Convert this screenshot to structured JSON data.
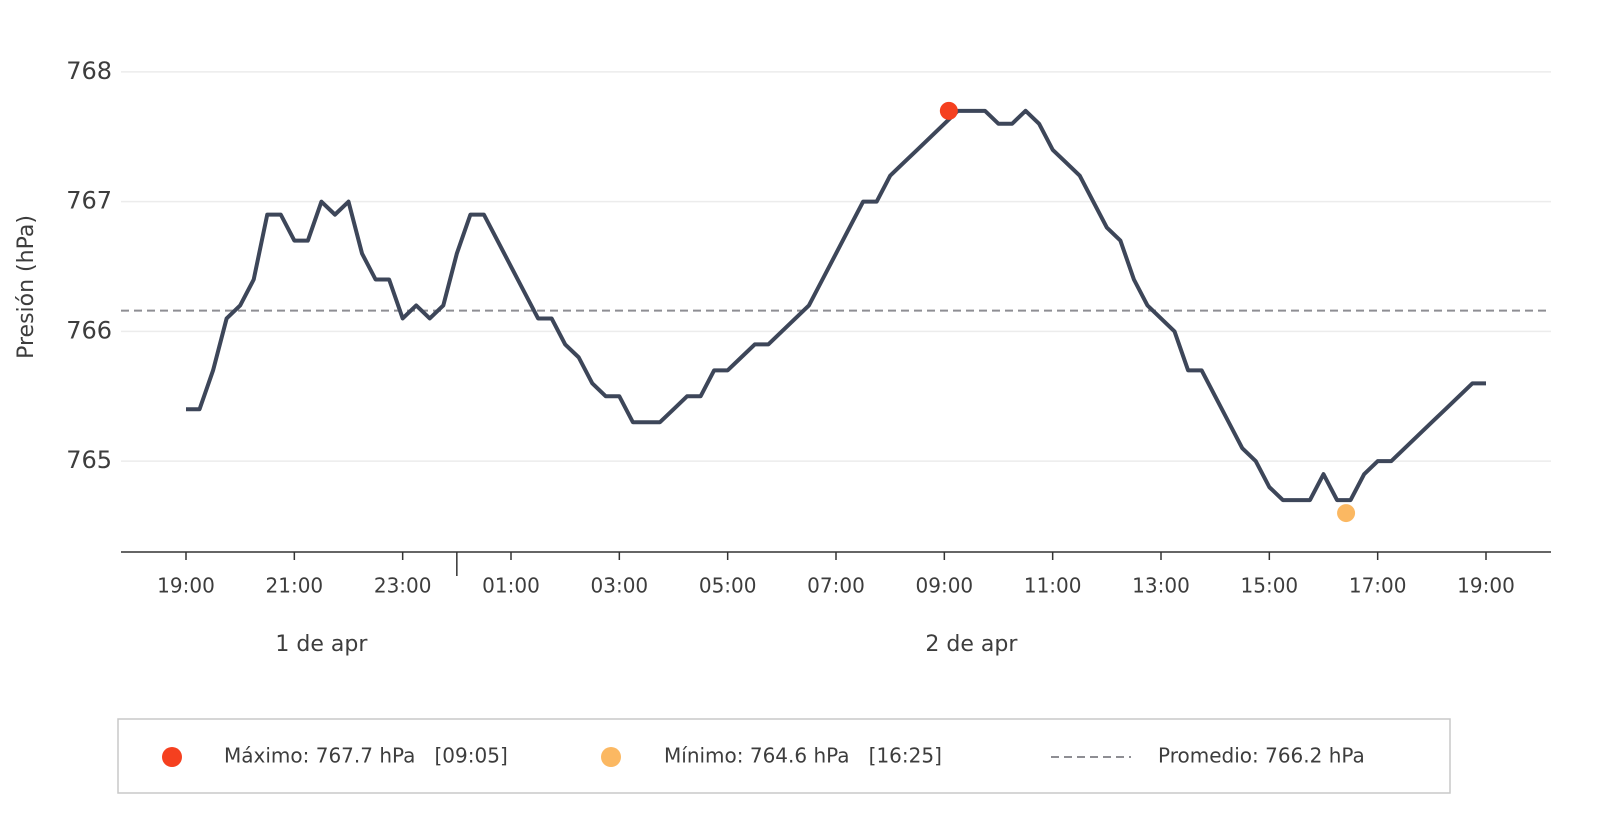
{
  "chart_data": {
    "type": "line",
    "y_label": "Presión (hPa)",
    "ylim": [
      764.3,
      768.4
    ],
    "yticks": [
      765,
      766,
      767,
      768
    ],
    "xlim": [
      "04-01T17:48",
      "04-02T20:12"
    ],
    "xticks": [
      {
        "value": "04-01T19:00",
        "label": "19:00"
      },
      {
        "value": "04-01T21:00",
        "label": "21:00"
      },
      {
        "value": "04-01T23:00",
        "label": "23:00"
      },
      {
        "value": "04-02T01:00",
        "label": "01:00"
      },
      {
        "value": "04-02T03:00",
        "label": "03:00"
      },
      {
        "value": "04-02T05:00",
        "label": "05:00"
      },
      {
        "value": "04-02T07:00",
        "label": "07:00"
      },
      {
        "value": "04-02T09:00",
        "label": "09:00"
      },
      {
        "value": "04-02T11:00",
        "label": "11:00"
      },
      {
        "value": "04-02T13:00",
        "label": "13:00"
      },
      {
        "value": "04-02T15:00",
        "label": "15:00"
      },
      {
        "value": "04-02T17:00",
        "label": "17:00"
      },
      {
        "value": "04-02T19:00",
        "label": "19:00"
      }
    ],
    "day_labels": [
      {
        "value": "04-01",
        "label": "1 de apr"
      },
      {
        "value": "04-02",
        "label": "2 de apr"
      }
    ],
    "grid": true,
    "x": [
      "04-01T19:00",
      "04-01T19:15",
      "04-01T19:30",
      "04-01T19:45",
      "04-01T20:00",
      "04-01T20:15",
      "04-01T20:30",
      "04-01T20:45",
      "04-01T21:00",
      "04-01T21:15",
      "04-01T21:30",
      "04-01T21:45",
      "04-01T22:00",
      "04-01T22:15",
      "04-01T22:30",
      "04-01T22:45",
      "04-01T23:00",
      "04-01T23:15",
      "04-01T23:30",
      "04-01T23:45",
      "04-02T00:00",
      "04-02T00:15",
      "04-02T00:30",
      "04-02T00:45",
      "04-02T01:00",
      "04-02T01:15",
      "04-02T01:30",
      "04-02T01:45",
      "04-02T02:00",
      "04-02T02:15",
      "04-02T02:30",
      "04-02T02:45",
      "04-02T03:00",
      "04-02T03:15",
      "04-02T03:30",
      "04-02T03:45",
      "04-02T04:00",
      "04-02T04:15",
      "04-02T04:30",
      "04-02T04:45",
      "04-02T05:00",
      "04-02T05:15",
      "04-02T05:30",
      "04-02T05:45",
      "04-02T06:00",
      "04-02T06:15",
      "04-02T06:30",
      "04-02T06:45",
      "04-02T07:00",
      "04-02T07:15",
      "04-02T07:30",
      "04-02T07:45",
      "04-02T08:00",
      "04-02T08:15",
      "04-02T08:30",
      "04-02T08:45",
      "04-02T09:00",
      "04-02T09:15",
      "04-02T09:30",
      "04-02T09:45",
      "04-02T10:00",
      "04-02T10:15",
      "04-02T10:30",
      "04-02T10:45",
      "04-02T11:00",
      "04-02T11:15",
      "04-02T11:30",
      "04-02T11:45",
      "04-02T12:00",
      "04-02T12:15",
      "04-02T12:30",
      "04-02T12:45",
      "04-02T13:00",
      "04-02T13:15",
      "04-02T13:30",
      "04-02T13:45",
      "04-02T14:00",
      "04-02T14:15",
      "04-02T14:30",
      "04-02T14:45",
      "04-02T15:00",
      "04-02T15:15",
      "04-02T15:30",
      "04-02T15:45",
      "04-02T16:00",
      "04-02T16:15",
      "04-02T16:30",
      "04-02T16:45",
      "04-02T17:00",
      "04-02T17:15",
      "04-02T17:30",
      "04-02T17:45",
      "04-02T18:00",
      "04-02T18:15",
      "04-02T18:30",
      "04-02T18:45",
      "04-02T19:00"
    ],
    "series": [
      {
        "name": "Presión",
        "color": "#3d4659",
        "values": [
          765.4,
          765.4,
          765.7,
          766.1,
          766.2,
          766.4,
          766.9,
          766.9,
          766.7,
          766.7,
          767.0,
          766.9,
          767.0,
          766.6,
          766.4,
          766.4,
          766.1,
          766.2,
          766.1,
          766.2,
          766.6,
          766.9,
          766.9,
          766.7,
          766.5,
          766.3,
          766.1,
          766.1,
          765.9,
          765.8,
          765.6,
          765.5,
          765.5,
          765.3,
          765.3,
          765.3,
          765.4,
          765.5,
          765.5,
          765.7,
          765.7,
          765.8,
          765.9,
          765.9,
          766.0,
          766.1,
          766.2,
          766.4,
          766.6,
          766.8,
          767.0,
          767.0,
          767.2,
          767.3,
          767.4,
          767.5,
          767.6,
          767.7,
          767.7,
          767.7,
          767.6,
          767.6,
          767.7,
          767.6,
          767.4,
          767.3,
          767.2,
          767.0,
          766.8,
          766.7,
          766.4,
          766.2,
          766.1,
          766.0,
          765.7,
          765.7,
          765.5,
          765.3,
          765.1,
          765.0,
          764.8,
          764.7,
          764.7,
          764.7,
          764.9,
          764.7,
          764.7,
          764.9,
          765.0,
          765.0,
          765.1,
          765.2,
          765.3,
          765.4,
          765.5,
          765.6,
          765.6
        ]
      }
    ],
    "max": {
      "x": "04-02T09:05",
      "value": 767.7,
      "color": "#f5401f",
      "label": "Máximo: 767.7 hPa   [09:05]"
    },
    "min": {
      "x": "04-02T16:25",
      "value": 764.6,
      "color": "#fbb862",
      "label": "Mínimo: 764.6 hPa   [16:25]"
    },
    "average": {
      "value": 766.16,
      "color": "#8e8e93",
      "label": "Promedio: 766.2 hPa"
    }
  }
}
